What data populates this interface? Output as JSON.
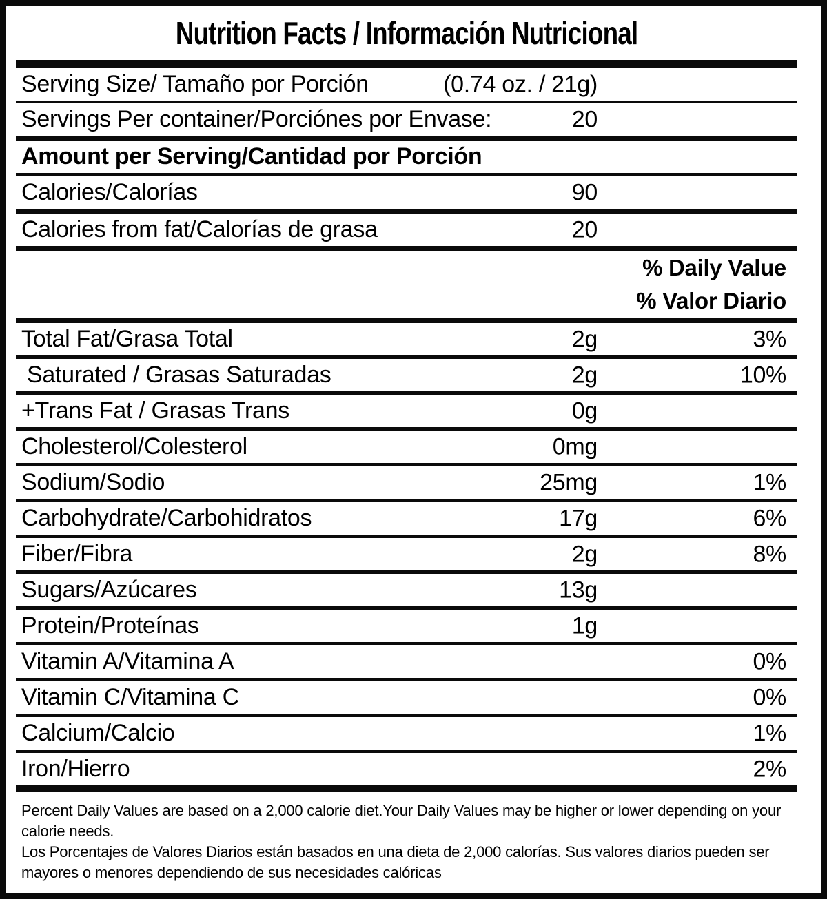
{
  "title": "Nutrition Facts / Información Nutricional",
  "serving_info_rows": [
    {
      "key": "serving-size",
      "label": "Serving Size/ Tamaño por Porción",
      "amount": "(0.74 oz. / 21g)",
      "percent": "",
      "bold": false,
      "indent": false
    },
    {
      "key": "servings-per-container",
      "label": "Servings Per container/Porciónes por Envase:",
      "amount": "20",
      "percent": "",
      "bold": false,
      "indent": false
    },
    {
      "key": "amount-per-serving",
      "label": "Amount per Serving/Cantidad por Porción",
      "amount": "",
      "percent": "",
      "bold": true,
      "indent": false
    },
    {
      "key": "calories",
      "label": "Calories/Calorías",
      "amount": "90",
      "percent": "",
      "bold": false,
      "indent": false
    },
    {
      "key": "calories-from-fat",
      "label": "Calories from fat/Calorías de grasa",
      "amount": "20",
      "percent": "",
      "bold": false,
      "indent": false
    }
  ],
  "daily_value_header": {
    "line1": "% Daily Value",
    "line2": "% Valor Diario"
  },
  "nutrient_rows": [
    {
      "key": "total-fat",
      "label": "Total Fat/Grasa Total",
      "amount": "2g",
      "percent": "3%",
      "bold": false,
      "indent": false
    },
    {
      "key": "saturated-fat",
      "label": "Saturated / Grasas Saturadas",
      "amount": "2g",
      "percent": "10%",
      "bold": false,
      "indent": true
    },
    {
      "key": "trans-fat",
      "label": "+Trans Fat / Grasas Trans",
      "amount": "0g",
      "percent": "",
      "bold": false,
      "indent": false
    },
    {
      "key": "cholesterol",
      "label": "Cholesterol/Colesterol",
      "amount": "0mg",
      "percent": "",
      "bold": false,
      "indent": false
    },
    {
      "key": "sodium",
      "label": "Sodium/Sodio",
      "amount": "25mg",
      "percent": "1%",
      "bold": false,
      "indent": false
    },
    {
      "key": "carbohydrate",
      "label": "Carbohydrate/Carbohidratos",
      "amount": "17g",
      "percent": "6%",
      "bold": false,
      "indent": false
    },
    {
      "key": "fiber",
      "label": "Fiber/Fibra",
      "amount": "2g",
      "percent": "8%",
      "bold": false,
      "indent": false
    },
    {
      "key": "sugars",
      "label": "Sugars/Azúcares",
      "amount": "13g",
      "percent": "",
      "bold": false,
      "indent": false
    },
    {
      "key": "protein",
      "label": "Protein/Proteínas",
      "amount": "1g",
      "percent": "",
      "bold": false,
      "indent": false
    },
    {
      "key": "vitamin-a",
      "label": "Vitamin A/Vitamina A",
      "amount": "",
      "percent": "0%",
      "bold": false,
      "indent": false
    },
    {
      "key": "vitamin-c",
      "label": "Vitamin C/Vitamina C",
      "amount": "",
      "percent": "0%",
      "bold": false,
      "indent": false
    },
    {
      "key": "calcium",
      "label": "Calcium/Calcio",
      "amount": "",
      "percent": "1%",
      "bold": false,
      "indent": false
    },
    {
      "key": "iron",
      "label": "Iron/Hierro",
      "amount": "",
      "percent": "2%",
      "bold": false,
      "indent": false
    }
  ],
  "footnotes": {
    "english": "Percent Daily Values are based on a 2,000 calorie diet.Your Daily Values may be higher or lower depending on your calorie needs.",
    "spanish": "Los Porcentajes de Valores Diarios están basados en una dieta de 2,000 calorías. Sus valores diarios pueden ser mayores o menores dependiendo de sus necesidades calóricas"
  }
}
